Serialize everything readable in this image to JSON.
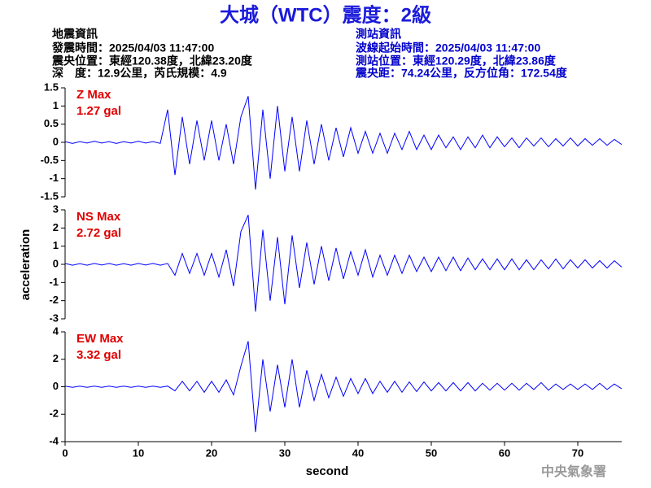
{
  "header": {
    "title": "大城（WTC）震度：2級",
    "left": [
      "地震資訊",
      "發震時間：2025/04/03 11:47:00",
      "震央位置：東經120.38度，北緯23.20度",
      "深　度：12.9公里，芮氏規模：4.9"
    ],
    "right": [
      "測站資訊",
      "波線起始時間：2025/04/03 11:47:00",
      "測站位置：東經120.29度，北緯23.86度",
      "震央距：74.24公里，反方位角：172.54度"
    ]
  },
  "footer": "中央氣象署",
  "chart_data": [
    {
      "type": "line",
      "color": "#0000ff",
      "annotations": [
        "Z Max",
        "1.27 gal"
      ],
      "xlim": [
        0,
        76
      ],
      "ylim": [
        -1.5,
        1.5
      ],
      "yticks": [
        -1.5,
        -1,
        -0.5,
        0,
        0.5,
        1,
        1.5
      ],
      "x": [
        0,
        1,
        2,
        3,
        4,
        5,
        6,
        7,
        8,
        9,
        10,
        11,
        12,
        13,
        14,
        15,
        16,
        17,
        18,
        19,
        20,
        21,
        22,
        23,
        24,
        25,
        26,
        27,
        28,
        29,
        30,
        31,
        32,
        33,
        34,
        35,
        36,
        37,
        38,
        39,
        40,
        41,
        42,
        43,
        44,
        45,
        46,
        47,
        48,
        49,
        50,
        51,
        52,
        53,
        54,
        55,
        56,
        57,
        58,
        59,
        60,
        61,
        62,
        63,
        64,
        65,
        66,
        67,
        68,
        69,
        70,
        71,
        72,
        73,
        74,
        75,
        76
      ],
      "values": [
        0.02,
        -0.03,
        0.02,
        -0.02,
        0.03,
        -0.02,
        0.02,
        -0.03,
        0.02,
        -0.02,
        0.03,
        -0.02,
        0.02,
        -0.03,
        0.9,
        -0.9,
        0.7,
        -0.6,
        0.6,
        -0.5,
        0.6,
        -0.5,
        0.5,
        -0.6,
        0.7,
        1.27,
        -1.3,
        0.9,
        -1.0,
        1.0,
        -0.8,
        0.7,
        -0.8,
        0.6,
        -0.6,
        0.5,
        -0.5,
        0.4,
        -0.4,
        0.4,
        -0.3,
        0.3,
        -0.3,
        0.25,
        -0.3,
        0.25,
        -0.2,
        0.3,
        -0.2,
        0.2,
        -0.2,
        0.2,
        -0.15,
        0.15,
        -0.2,
        0.15,
        -0.15,
        0.2,
        -0.15,
        0.15,
        -0.12,
        0.12,
        -0.15,
        0.12,
        -0.1,
        0.12,
        -0.12,
        0.1,
        -0.1,
        0.12,
        -0.1,
        0.1,
        -0.08,
        0.1,
        -0.08,
        0.08,
        -0.06
      ]
    },
    {
      "type": "line",
      "color": "#0000ff",
      "annotations": [
        "NS Max",
        "2.72 gal"
      ],
      "ylabel": "acceleration",
      "xlim": [
        0,
        76
      ],
      "ylim": [
        -3,
        3
      ],
      "yticks": [
        -3,
        -2,
        -1,
        0,
        1,
        2,
        3
      ],
      "x": [
        0,
        1,
        2,
        3,
        4,
        5,
        6,
        7,
        8,
        9,
        10,
        11,
        12,
        13,
        14,
        15,
        16,
        17,
        18,
        19,
        20,
        21,
        22,
        23,
        24,
        25,
        26,
        27,
        28,
        29,
        30,
        31,
        32,
        33,
        34,
        35,
        36,
        37,
        38,
        39,
        40,
        41,
        42,
        43,
        44,
        45,
        46,
        47,
        48,
        49,
        50,
        51,
        52,
        53,
        54,
        55,
        56,
        57,
        58,
        59,
        60,
        61,
        62,
        63,
        64,
        65,
        66,
        67,
        68,
        69,
        70,
        71,
        72,
        73,
        74,
        75,
        76
      ],
      "values": [
        0.05,
        -0.05,
        0.04,
        -0.05,
        0.05,
        -0.04,
        0.05,
        -0.05,
        0.04,
        -0.05,
        0.05,
        -0.04,
        0.05,
        -0.05,
        0.05,
        -0.6,
        0.6,
        -0.5,
        0.6,
        -0.6,
        0.6,
        -0.7,
        0.8,
        -1.2,
        1.8,
        2.72,
        -2.6,
        1.9,
        -2.0,
        1.5,
        -2.2,
        1.6,
        -1.3,
        1.2,
        -1.1,
        1.0,
        -0.9,
        0.9,
        -0.8,
        0.7,
        -0.6,
        0.8,
        -0.7,
        0.5,
        -0.6,
        0.5,
        -0.5,
        0.5,
        -0.4,
        0.4,
        -0.4,
        0.4,
        -0.35,
        0.4,
        -0.35,
        0.35,
        -0.3,
        0.3,
        -0.3,
        0.3,
        -0.3,
        0.3,
        -0.3,
        0.25,
        -0.3,
        0.25,
        -0.25,
        0.3,
        -0.25,
        0.25,
        -0.2,
        0.25,
        -0.2,
        0.2,
        -0.2,
        0.2,
        -0.15
      ]
    },
    {
      "type": "line",
      "color": "#0000ff",
      "annotations": [
        "EW Max",
        "3.32 gal"
      ],
      "xlabel": "second",
      "xlim": [
        0,
        76
      ],
      "xticks": [
        0,
        10,
        20,
        30,
        40,
        50,
        60,
        70
      ],
      "ylim": [
        -4,
        4
      ],
      "yticks": [
        -4,
        -2,
        0,
        2,
        4
      ],
      "x": [
        0,
        1,
        2,
        3,
        4,
        5,
        6,
        7,
        8,
        9,
        10,
        11,
        12,
        13,
        14,
        15,
        16,
        17,
        18,
        19,
        20,
        21,
        22,
        23,
        24,
        25,
        26,
        27,
        28,
        29,
        30,
        31,
        32,
        33,
        34,
        35,
        36,
        37,
        38,
        39,
        40,
        41,
        42,
        43,
        44,
        45,
        46,
        47,
        48,
        49,
        50,
        51,
        52,
        53,
        54,
        55,
        56,
        57,
        58,
        59,
        60,
        61,
        62,
        63,
        64,
        65,
        66,
        67,
        68,
        69,
        70,
        71,
        72,
        73,
        74,
        75,
        76
      ],
      "values": [
        0.05,
        -0.05,
        0.04,
        -0.05,
        0.05,
        -0.04,
        0.05,
        -0.05,
        0.04,
        -0.05,
        0.05,
        -0.04,
        0.05,
        -0.05,
        0.05,
        -0.3,
        0.4,
        -0.3,
        0.4,
        -0.4,
        0.4,
        -0.4,
        0.5,
        -0.6,
        1.5,
        3.32,
        -3.3,
        2.0,
        -1.8,
        1.6,
        -1.5,
        2.0,
        -1.5,
        1.2,
        -1.0,
        0.9,
        -0.8,
        0.7,
        -0.7,
        0.6,
        -0.5,
        0.6,
        -0.5,
        0.4,
        -0.4,
        0.4,
        -0.4,
        0.35,
        -0.35,
        0.35,
        -0.3,
        0.3,
        -0.3,
        0.3,
        -0.3,
        0.3,
        -0.3,
        0.25,
        -0.25,
        0.25,
        -0.25,
        0.25,
        -0.25,
        0.25,
        -0.2,
        0.3,
        -0.25,
        0.2,
        -0.2,
        0.2,
        -0.2,
        0.2,
        -0.2,
        0.25,
        -0.2,
        0.2,
        -0.15
      ]
    }
  ]
}
